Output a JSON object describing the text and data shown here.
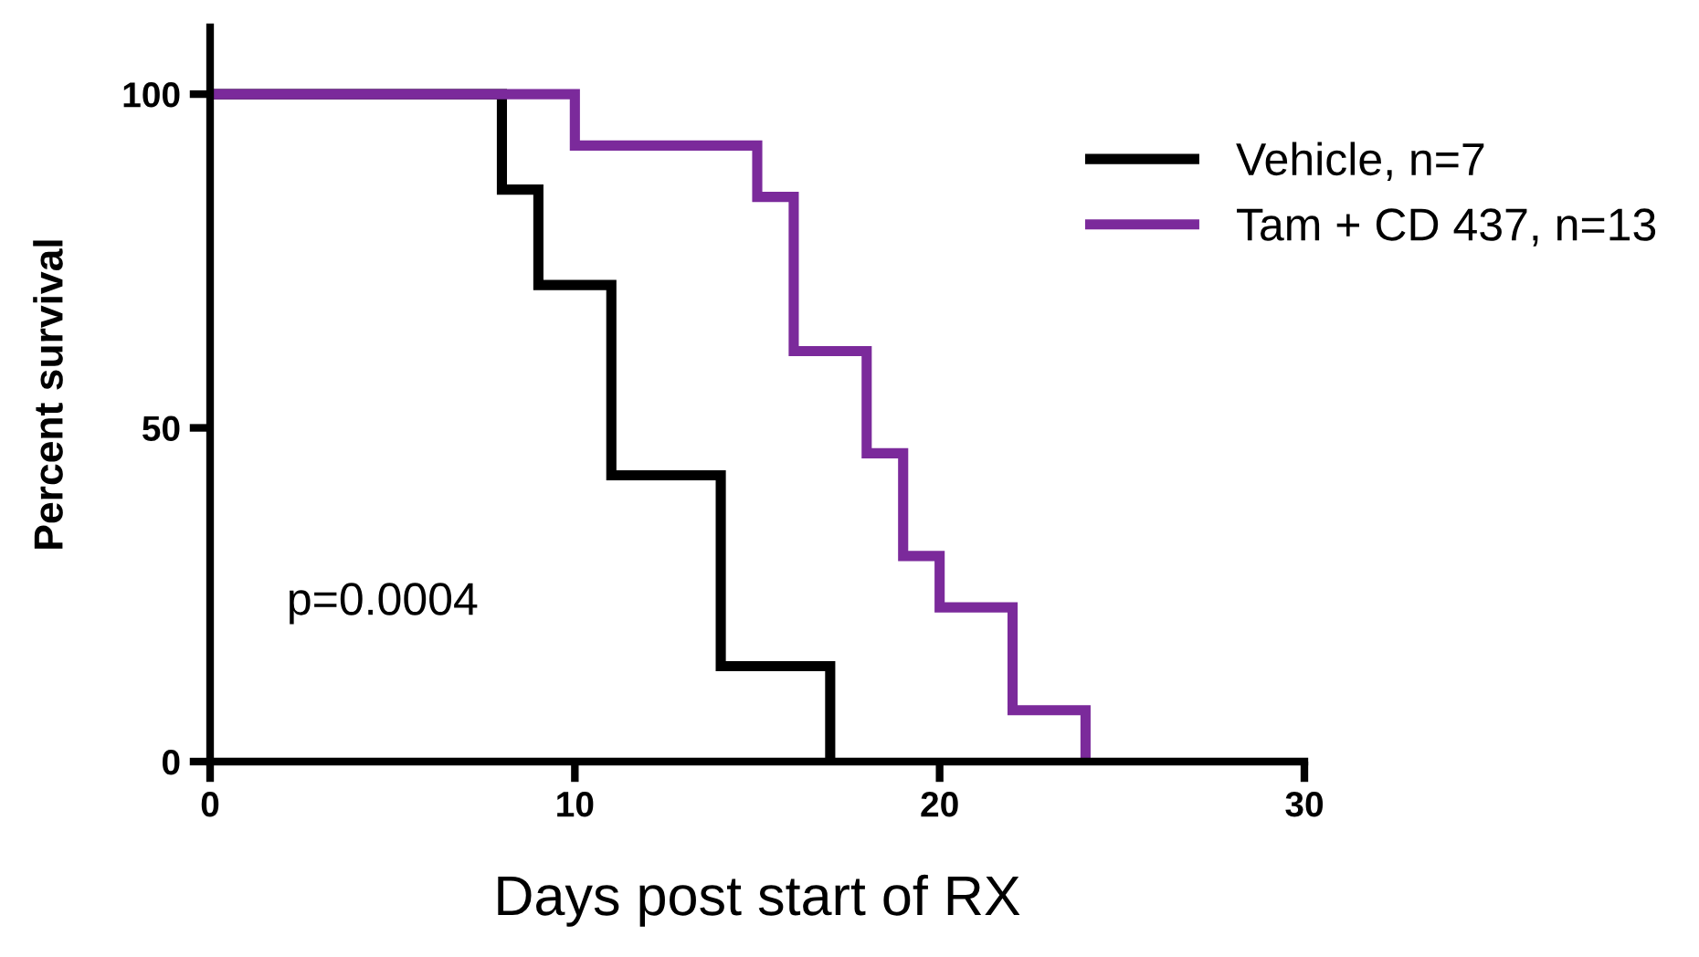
{
  "chart_data": {
    "type": "step",
    "xlabel": "Days post start of RX",
    "ylabel": "Percent survival",
    "xlim": [
      0,
      30
    ],
    "xticks": [
      0,
      10,
      20,
      30
    ],
    "ylim": [
      0,
      110
    ],
    "yticks": [
      0,
      50,
      100
    ],
    "grid": false,
    "legend": "top right",
    "marker": "none",
    "line_style": "solid",
    "annotations": [
      "p=0.0004"
    ],
    "series": [
      {
        "name": "Vehicle, n=7",
        "color": "#000000",
        "x": [
          0,
          8,
          9,
          11,
          14,
          17
        ],
        "values": [
          100,
          85.7,
          71.4,
          42.9,
          14.3,
          0
        ]
      },
      {
        "name": "Tam + CD 437, n=13",
        "color": "#7b2a9b",
        "x": [
          0,
          10,
          15,
          16,
          18,
          19,
          20,
          22,
          24
        ],
        "values": [
          100,
          92.3,
          84.6,
          61.5,
          46.2,
          30.8,
          23.1,
          7.7,
          0
        ]
      }
    ]
  }
}
